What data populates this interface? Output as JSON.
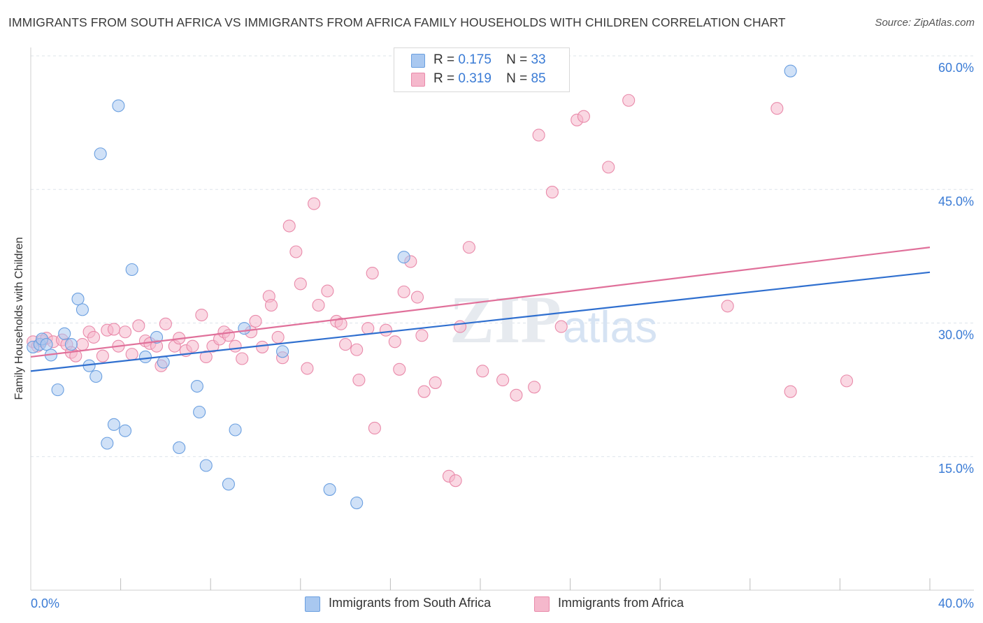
{
  "title": "IMMIGRANTS FROM SOUTH AFRICA VS IMMIGRANTS FROM AFRICA FAMILY HOUSEHOLDS WITH CHILDREN CORRELATION CHART",
  "source": "Source: ZipAtlas.com",
  "watermark": {
    "zip": "ZIP",
    "atlas": "atlas"
  },
  "colors": {
    "blue_fill": "#a9c8f0",
    "blue_stroke": "#6a9fe0",
    "blue_line": "#2f6fcf",
    "pink_fill": "#f5b8cc",
    "pink_stroke": "#e98aaa",
    "pink_line": "#e0709a",
    "tick_text": "#3a7bd5",
    "grid": "#dde3ea"
  },
  "legend": {
    "series1": {
      "r_label": "R =",
      "r_value": "0.175",
      "n_label": "N =",
      "n_value": "33"
    },
    "series2": {
      "r_label": "R =",
      "r_value": "0.319",
      "n_label": "N =",
      "n_value": "85"
    }
  },
  "chart_data": {
    "type": "scatter",
    "title": "IMMIGRANTS FROM SOUTH AFRICA VS IMMIGRANTS FROM AFRICA FAMILY HOUSEHOLDS WITH CHILDREN CORRELATION CHART",
    "xlabel": "",
    "ylabel": "Family Households with Children",
    "xlim": [
      0,
      40
    ],
    "ylim": [
      0,
      60
    ],
    "x_tick_labels": [
      "0.0%",
      "40.0%"
    ],
    "y_ticks": [
      15,
      30,
      45,
      60
    ],
    "y_tick_labels": [
      "15.0%",
      "30.0%",
      "45.0%",
      "60.0%"
    ],
    "grid": true,
    "legend_position": "bottom",
    "series": [
      {
        "name": "Immigrants from South Africa",
        "color": "blue",
        "trend": {
          "x": [
            0,
            40
          ],
          "y": [
            24.6,
            35.7
          ]
        },
        "points": [
          [
            0.1,
            27.3
          ],
          [
            0.4,
            27.6
          ],
          [
            0.5,
            28.2
          ],
          [
            0.7,
            27.6
          ],
          [
            0.9,
            26.4
          ],
          [
            1.2,
            22.5
          ],
          [
            1.5,
            28.8
          ],
          [
            1.8,
            27.6
          ],
          [
            2.1,
            32.7
          ],
          [
            2.3,
            31.5
          ],
          [
            2.6,
            25.2
          ],
          [
            2.9,
            24.0
          ],
          [
            3.1,
            49.0
          ],
          [
            3.4,
            16.5
          ],
          [
            3.7,
            18.6
          ],
          [
            3.9,
            54.4
          ],
          [
            4.2,
            17.9
          ],
          [
            4.5,
            36.0
          ],
          [
            5.1,
            26.2
          ],
          [
            5.6,
            28.4
          ],
          [
            5.9,
            25.6
          ],
          [
            6.6,
            16.0
          ],
          [
            7.4,
            22.9
          ],
          [
            7.5,
            20.0
          ],
          [
            7.8,
            14.0
          ],
          [
            8.8,
            11.9
          ],
          [
            9.1,
            18.0
          ],
          [
            9.5,
            29.4
          ],
          [
            11.2,
            26.8
          ],
          [
            13.3,
            11.3
          ],
          [
            14.5,
            9.8
          ],
          [
            16.6,
            37.4
          ],
          [
            33.8,
            58.3
          ]
        ]
      },
      {
        "name": "Immigrants from Africa",
        "color": "pink",
        "trend": {
          "x": [
            0,
            40
          ],
          "y": [
            26.2,
            38.5
          ]
        },
        "points": [
          [
            0.1,
            27.9
          ],
          [
            0.3,
            27.4
          ],
          [
            0.5,
            28.0
          ],
          [
            0.7,
            28.3
          ],
          [
            1.0,
            27.9
          ],
          [
            1.4,
            28.1
          ],
          [
            1.6,
            27.6
          ],
          [
            1.8,
            26.7
          ],
          [
            2.0,
            26.3
          ],
          [
            2.3,
            27.6
          ],
          [
            2.6,
            29.0
          ],
          [
            2.8,
            28.4
          ],
          [
            3.2,
            26.3
          ],
          [
            3.4,
            29.2
          ],
          [
            3.7,
            29.3
          ],
          [
            3.9,
            27.4
          ],
          [
            4.2,
            29.0
          ],
          [
            4.5,
            26.5
          ],
          [
            4.8,
            29.7
          ],
          [
            5.1,
            28.0
          ],
          [
            5.3,
            27.7
          ],
          [
            5.6,
            27.4
          ],
          [
            5.8,
            25.2
          ],
          [
            6.0,
            29.9
          ],
          [
            6.4,
            27.4
          ],
          [
            6.6,
            28.3
          ],
          [
            6.9,
            26.9
          ],
          [
            7.2,
            27.4
          ],
          [
            7.6,
            30.9
          ],
          [
            7.8,
            26.2
          ],
          [
            8.1,
            27.4
          ],
          [
            8.4,
            28.2
          ],
          [
            8.6,
            29.0
          ],
          [
            8.8,
            28.6
          ],
          [
            9.1,
            27.4
          ],
          [
            9.4,
            26.0
          ],
          [
            9.8,
            29.0
          ],
          [
            10.0,
            30.2
          ],
          [
            10.3,
            27.3
          ],
          [
            10.6,
            33.0
          ],
          [
            10.7,
            32.0
          ],
          [
            11.0,
            28.4
          ],
          [
            11.2,
            26.1
          ],
          [
            11.5,
            40.9
          ],
          [
            11.8,
            38.0
          ],
          [
            12.0,
            34.4
          ],
          [
            12.3,
            24.9
          ],
          [
            12.6,
            43.4
          ],
          [
            12.8,
            32.0
          ],
          [
            13.2,
            33.6
          ],
          [
            13.6,
            30.2
          ],
          [
            13.8,
            29.9
          ],
          [
            14.0,
            27.6
          ],
          [
            14.5,
            27.0
          ],
          [
            14.6,
            23.6
          ],
          [
            15.0,
            29.4
          ],
          [
            15.2,
            35.6
          ],
          [
            15.3,
            18.2
          ],
          [
            15.8,
            29.2
          ],
          [
            16.2,
            27.9
          ],
          [
            16.4,
            24.8
          ],
          [
            16.6,
            33.5
          ],
          [
            16.9,
            36.9
          ],
          [
            17.2,
            32.9
          ],
          [
            17.4,
            28.6
          ],
          [
            17.5,
            22.3
          ],
          [
            18.0,
            23.3
          ],
          [
            18.6,
            12.8
          ],
          [
            18.9,
            12.3
          ],
          [
            19.1,
            29.6
          ],
          [
            19.5,
            38.5
          ],
          [
            20.1,
            24.6
          ],
          [
            21.0,
            23.6
          ],
          [
            21.6,
            21.9
          ],
          [
            22.4,
            22.8
          ],
          [
            22.6,
            51.1
          ],
          [
            23.2,
            44.7
          ],
          [
            23.6,
            29.6
          ],
          [
            24.3,
            52.8
          ],
          [
            24.6,
            53.2
          ],
          [
            25.7,
            47.5
          ],
          [
            26.6,
            55.0
          ],
          [
            31.0,
            31.9
          ],
          [
            33.2,
            54.1
          ],
          [
            33.8,
            22.3
          ],
          [
            36.3,
            23.5
          ]
        ]
      }
    ]
  },
  "bottom_legend": {
    "series1_label": "Immigrants from South Africa",
    "series2_label": "Immigrants from Africa"
  }
}
